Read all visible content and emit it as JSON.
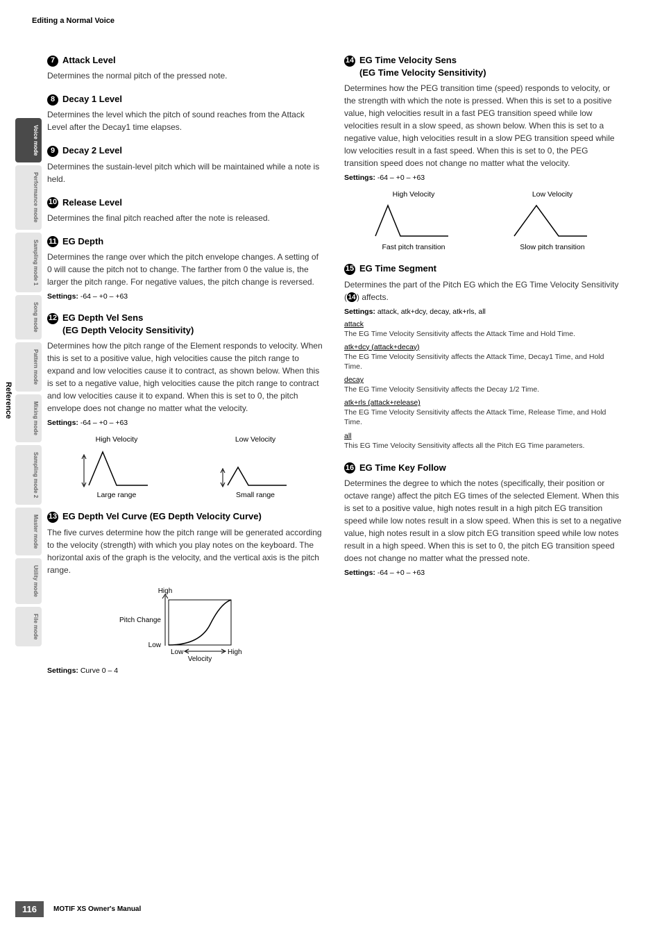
{
  "header": {
    "title": "Editing a Normal Voice"
  },
  "reference_label": "Reference",
  "sidebar": {
    "items": [
      {
        "label": "Voice mode",
        "active": true
      },
      {
        "label": "Performance mode",
        "active": false
      },
      {
        "label": "Sampling mode 1",
        "active": false
      },
      {
        "label": "Song mode",
        "active": false
      },
      {
        "label": "Pattern mode",
        "active": false
      },
      {
        "label": "Mixing mode",
        "active": false
      },
      {
        "label": "Sampling mode 2",
        "active": false
      },
      {
        "label": "Master mode",
        "active": false
      },
      {
        "label": "Utility mode",
        "active": false
      },
      {
        "label": "File mode",
        "active": false
      }
    ]
  },
  "sections": {
    "s7": {
      "num": "7",
      "title": "Attack Level",
      "body": "Determines the normal pitch of the pressed note."
    },
    "s8": {
      "num": "8",
      "title": "Decay 1 Level",
      "body": "Determines the level which the pitch of sound reaches from the Attack Level after the Decay1 time elapses."
    },
    "s9": {
      "num": "9",
      "title": "Decay 2 Level",
      "body": "Determines the sustain-level pitch which will be maintained while a note is held."
    },
    "s10": {
      "num": "10",
      "title": "Release Level",
      "body": "Determines the final pitch reached after the note is released."
    },
    "s11": {
      "num": "11",
      "title": "EG Depth",
      "body": "Determines the range over which the pitch envelope changes. A setting of 0 will cause the pitch not to change. The farther from 0 the value is, the larger the pitch range. For negative values, the pitch change is reversed.",
      "settings": "-64 – +0 – +63"
    },
    "s12": {
      "num": "12",
      "title": "EG Depth Vel Sens",
      "subtitle": "(EG Depth Velocity Sensitivity)",
      "body": "Determines how the pitch range of the Element responds to velocity. When this is set to a positive value, high velocities cause the pitch range to expand and low velocities cause it to contract, as shown below. When this is set to a negative value, high velocities cause the pitch range to contract and low velocities cause it to expand. When this is set to 0, the pitch envelope does not change no matter what the velocity.",
      "settings": "-64 – +0 – +63",
      "diagram": {
        "left_top": "High Velocity",
        "left_bottom": "Large range",
        "right_top": "Low Velocity",
        "right_bottom": "Small range",
        "stroke": "#000",
        "large_height": 48,
        "small_height": 26
      }
    },
    "s13": {
      "num": "13",
      "title": "EG Depth Vel Curve (EG Depth Velocity Curve)",
      "body": "The five curves determine how the pitch range will be generated according to the velocity (strength) with which you play notes on the keyboard. The horizontal axis of the graph is the velocity, and the vertical axis is the pitch range.",
      "settings": "Curve 0 – 4",
      "curve": {
        "y_label": "Pitch Change",
        "y_high": "High",
        "y_low": "Low",
        "x_label": "Velocity",
        "x_low": "Low",
        "x_high": "High",
        "stroke": "#000"
      }
    },
    "s14": {
      "num": "14",
      "title": "EG Time Velocity Sens",
      "subtitle": "(EG Time Velocity Sensitivity)",
      "body": "Determines how the PEG transition time (speed) responds to velocity, or the strength with which the note is pressed. When this is set to a positive value, high velocities result in a fast PEG transition speed while low velocities result in a slow speed, as shown below. When this is set to a negative value, high velocities result in a slow PEG transition speed while low velocities result in a fast speed. When this is set to 0, the PEG transition speed does not change no matter what the velocity.",
      "settings": "-64 – +0 – +63",
      "diagram": {
        "left_top": "High Velocity",
        "left_bottom": "Fast pitch transition",
        "right_top": "Low Velocity",
        "right_bottom": "Slow pitch transition",
        "stroke": "#000"
      }
    },
    "s15": {
      "num": "15",
      "title": "EG Time Segment",
      "body_prefix": "Determines the part of the Pitch EG which the EG Time Velocity Sensitivity (",
      "body_ref": "14",
      "body_suffix": ") affects.",
      "settings": "attack, atk+dcy, decay, atk+rls, all",
      "defs": [
        {
          "term": "attack",
          "desc": "The EG Time Velocity Sensitivity affects the Attack Time and Hold Time."
        },
        {
          "term": "atk+dcy (attack+decay)",
          "desc": "The EG Time Velocity Sensitivity affects the Attack Time, Decay1 Time, and Hold Time."
        },
        {
          "term": "decay",
          "desc": "The EG Time Velocity Sensitivity affects the Decay 1/2 Time."
        },
        {
          "term": "atk+rls (attack+release)",
          "desc": "The EG Time Velocity Sensitivity affects the Attack Time, Release Time, and Hold Time."
        },
        {
          "term": "all",
          "desc": "This EG Time Velocity Sensitivity affects all the Pitch EG Time parameters."
        }
      ]
    },
    "s16": {
      "num": "16",
      "title": "EG Time Key Follow",
      "body": "Determines the degree to which the notes (specifically, their position or octave range) affect the pitch EG times of the selected Element. When this is set to a positive value, high notes result in a high pitch EG transition speed while low notes result in a slow speed. When this is set to a negative value, high notes result in a slow pitch EG transition speed while low notes result in a high speed. When this is set to 0, the pitch EG transition speed does not change no matter what the pressed note.",
      "settings": "-64 – +0 – +63"
    }
  },
  "settings_label": "Settings:",
  "footer": {
    "page": "116",
    "manual": "MOTIF XS Owner's Manual"
  }
}
